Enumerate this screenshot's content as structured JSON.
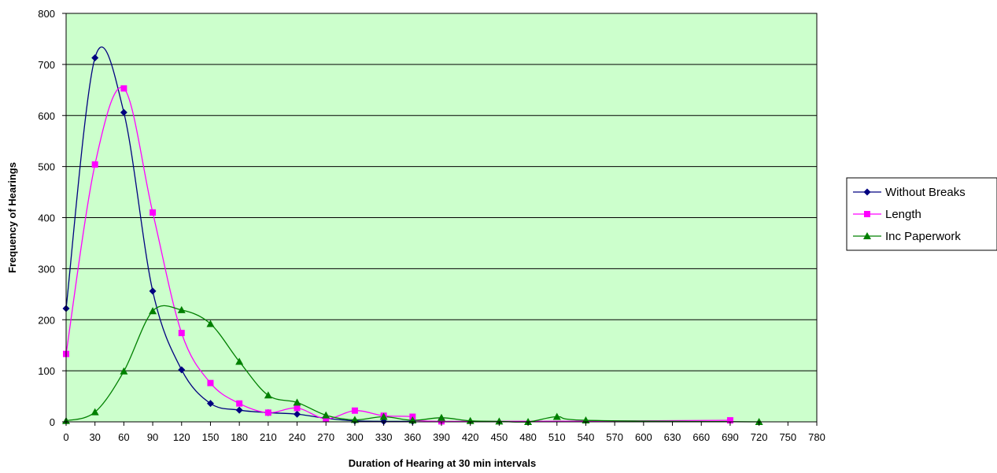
{
  "chart_data": {
    "type": "line",
    "title": "",
    "xlabel": "Duration of Hearing at 30 min intervals",
    "ylabel": "Frequency of Hearings",
    "xlim": [
      0,
      780
    ],
    "ylim": [
      0,
      800
    ],
    "x_ticks": [
      "0",
      "30",
      "60",
      "90",
      "120",
      "150",
      "180",
      "210",
      "240",
      "270",
      "300",
      "330",
      "360",
      "390",
      "420",
      "450",
      "480",
      "510",
      "540",
      "570",
      "600",
      "630",
      "660",
      "690",
      "720",
      "750",
      "780"
    ],
    "y_ticks": [
      "0",
      "100",
      "200",
      "300",
      "400",
      "500",
      "600",
      "700",
      "800"
    ],
    "grid": "horizontal",
    "legend_position": "right",
    "plot_background": "#ccffcc",
    "series": [
      {
        "name": "Without Breaks",
        "color": "#000080",
        "marker": "diamond",
        "x": [
          0,
          30,
          60,
          90,
          120,
          150,
          180,
          210,
          240,
          270,
          300,
          330,
          360
        ],
        "y": [
          222,
          713,
          606,
          256,
          102,
          36,
          23,
          18,
          15,
          7,
          2,
          1,
          1
        ]
      },
      {
        "name": "Length",
        "color": "#ff00ff",
        "marker": "square",
        "x": [
          0,
          30,
          60,
          90,
          120,
          150,
          180,
          210,
          240,
          270,
          300,
          330,
          360,
          390,
          690
        ],
        "y": [
          133,
          504,
          653,
          410,
          174,
          76,
          36,
          18,
          27,
          6,
          22,
          12,
          10,
          1,
          3
        ]
      },
      {
        "name": "Inc Paperwork",
        "color": "#008000",
        "marker": "triangle",
        "x": [
          0,
          30,
          60,
          90,
          120,
          150,
          180,
          210,
          240,
          270,
          300,
          330,
          360,
          390,
          420,
          450,
          480,
          510,
          540,
          720
        ],
        "y": [
          2,
          19,
          99,
          217,
          219,
          192,
          118,
          52,
          38,
          13,
          4,
          10,
          3,
          8,
          2,
          1,
          0,
          10,
          3,
          0
        ]
      }
    ]
  }
}
